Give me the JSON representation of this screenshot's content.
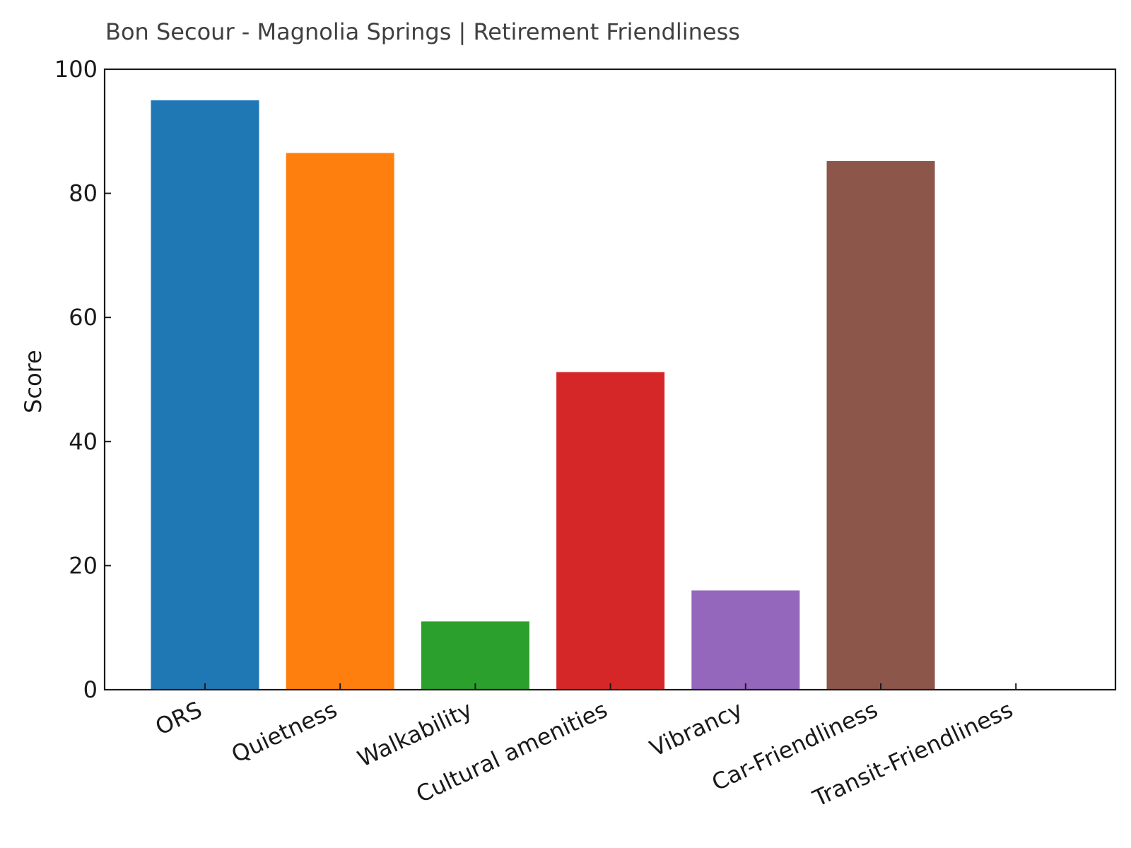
{
  "chart_data": {
    "type": "bar",
    "title": "Bon Secour - Magnolia Springs | Retirement Friendliness",
    "xlabel": "",
    "ylabel": "Score",
    "ylim": [
      0,
      100
    ],
    "yticks": [
      "0",
      "20",
      "40",
      "60",
      "80",
      "100"
    ],
    "grid": false,
    "categories": [
      "ORS",
      "Quietness",
      "Walkability",
      "Cultural amenities",
      "Vibrancy",
      "Car-Friendliness",
      "Transit-Friendliness"
    ],
    "values": [
      95,
      86.5,
      11,
      51.2,
      16,
      85.2,
      0
    ],
    "colors": [
      "#1f77b4",
      "#ff7f0e",
      "#2ca02c",
      "#d62728",
      "#9467bd",
      "#8c564b",
      "#e377c2"
    ]
  }
}
